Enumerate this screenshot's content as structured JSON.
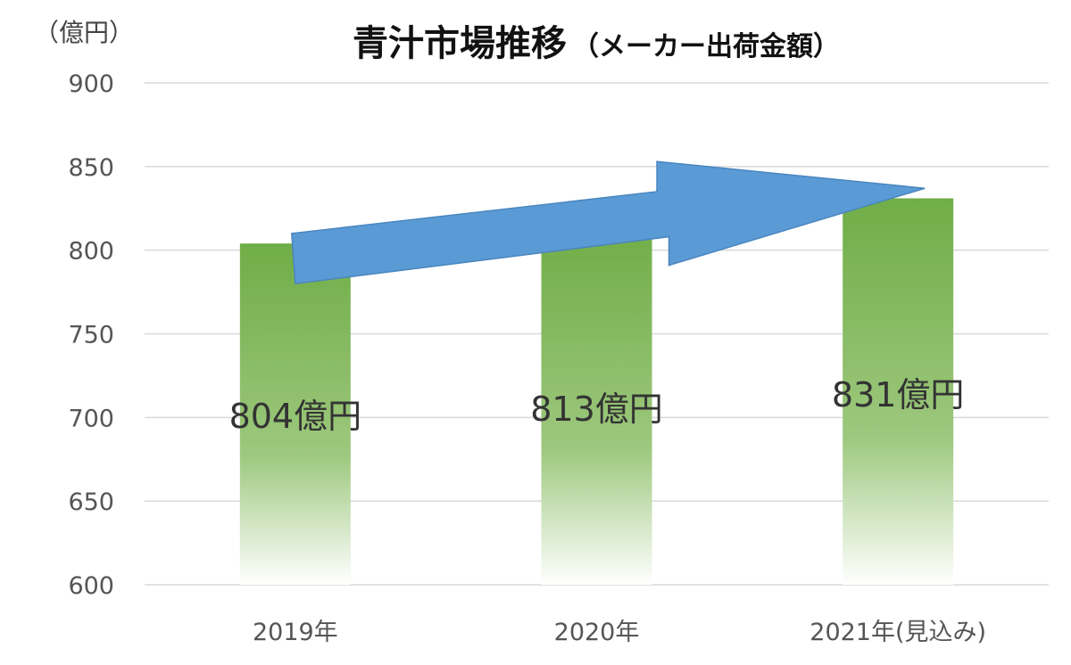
{
  "chart_data": {
    "type": "bar",
    "title": "青汁市場推移",
    "subtitle": "（メーカー出荷金額）",
    "unit_label": "（億円）",
    "categories": [
      "2019年",
      "2020年",
      "2021年(見込み)"
    ],
    "values": [
      804,
      813,
      831
    ],
    "data_labels": [
      "804億円",
      "813億円",
      "831億円"
    ],
    "ylim": [
      600,
      900
    ],
    "yticks": [
      600,
      650,
      700,
      750,
      800,
      850,
      900
    ],
    "grid": true,
    "legend": "none",
    "bar_color": "#70ad47",
    "arrow_color": "#5b9bd5",
    "annotations": [
      {
        "type": "arrow",
        "direction": "upward",
        "from_category": "2019年",
        "to_category": "2021年(見込み)"
      }
    ]
  }
}
